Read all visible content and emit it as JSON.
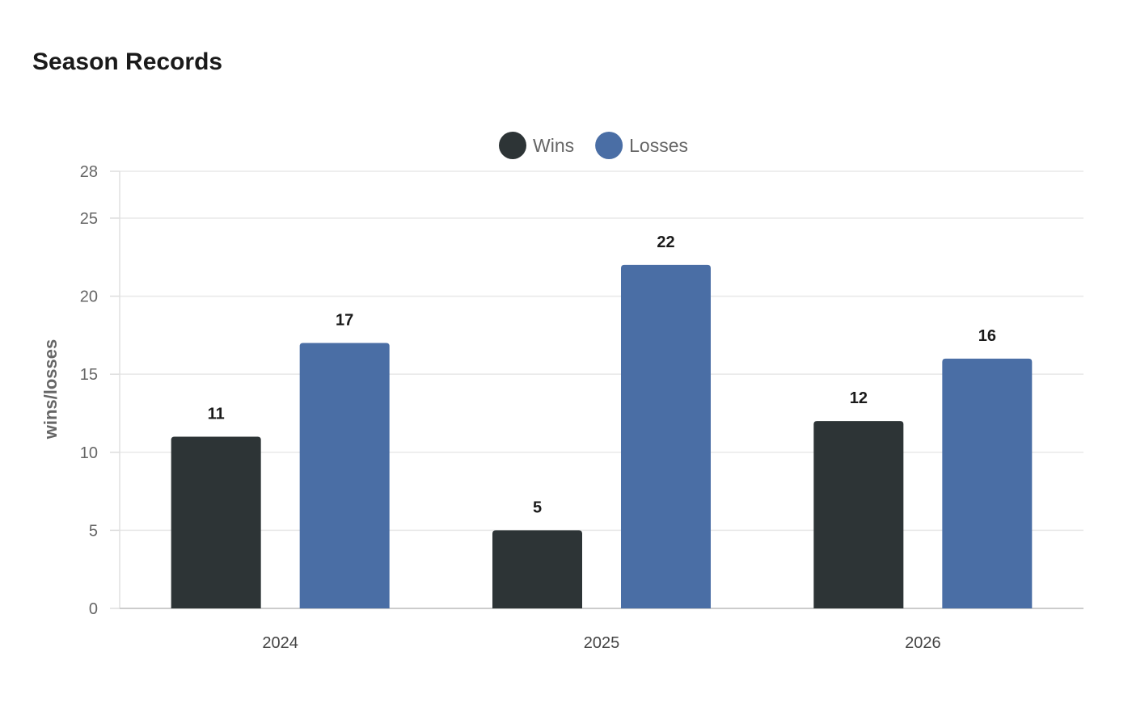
{
  "chart_data": {
    "type": "bar",
    "title": "Season Records",
    "xlabel": "",
    "ylabel": "wins/losses",
    "categories": [
      "2024",
      "2025",
      "2026"
    ],
    "series": [
      {
        "name": "Wins",
        "values": [
          11,
          5,
          12
        ],
        "color": "#2d3436"
      },
      {
        "name": "Losses",
        "values": [
          17,
          22,
          16
        ],
        "color": "#4a6ea5"
      }
    ],
    "ylim": [
      0,
      28
    ],
    "yticks": [
      0,
      5,
      10,
      15,
      20,
      25,
      28
    ],
    "grid": true,
    "legend_position": "top-center",
    "data_labels": true
  }
}
